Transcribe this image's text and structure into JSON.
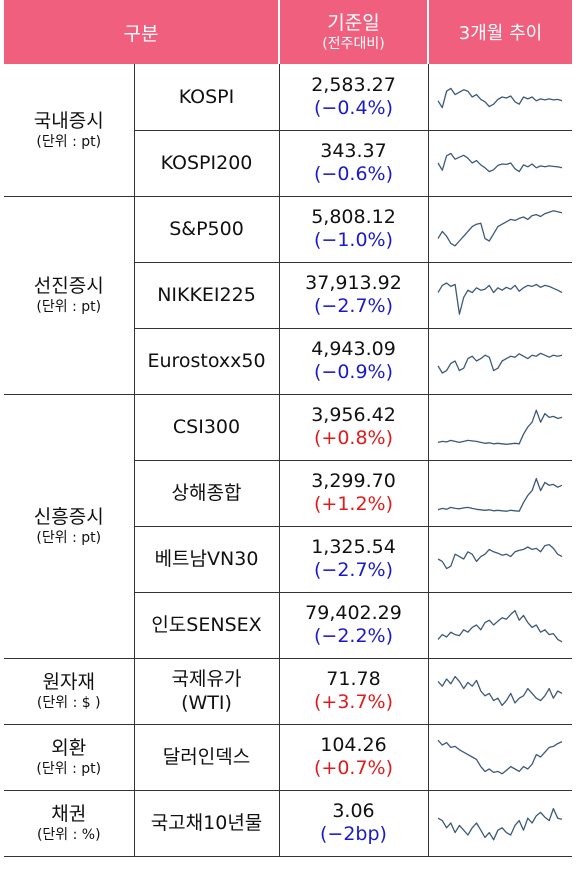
{
  "header": {
    "category": "구분",
    "base_date": "기준일",
    "base_date_sub": "(전주대비)",
    "trend": "3개월 추이"
  },
  "groups": [
    {
      "name": "국내증시",
      "unit": "(단위 : pt)"
    },
    {
      "name": "선진증시",
      "unit": "(단위 : pt)"
    },
    {
      "name": "신흥증시",
      "unit": "(단위 : pt)"
    },
    {
      "name": "원자재",
      "unit": "(단위 : $ )"
    },
    {
      "name": "외환",
      "unit": "(단위 : pt)"
    },
    {
      "name": "채권",
      "unit": "(단위 : %)"
    }
  ],
  "rows": [
    {
      "asset": "KOSPI",
      "value": "2,583.27",
      "change": "(−0.4%)",
      "direction": "down",
      "trend": [
        0.42,
        0.28,
        0.62,
        0.68,
        0.55,
        0.6,
        0.65,
        0.62,
        0.5,
        0.55,
        0.45,
        0.4,
        0.3,
        0.35,
        0.45,
        0.5,
        0.48,
        0.52,
        0.4,
        0.35,
        0.5,
        0.46,
        0.5,
        0.42,
        0.46,
        0.44,
        0.46,
        0.44,
        0.45,
        0.42
      ]
    },
    {
      "asset": "KOSPI200",
      "value": "343.37",
      "change": "(−0.6%)",
      "direction": "down",
      "trend": [
        0.5,
        0.35,
        0.65,
        0.7,
        0.58,
        0.62,
        0.66,
        0.6,
        0.5,
        0.55,
        0.46,
        0.4,
        0.32,
        0.36,
        0.45,
        0.48,
        0.47,
        0.5,
        0.38,
        0.32,
        0.46,
        0.42,
        0.48,
        0.4,
        0.44,
        0.42,
        0.44,
        0.43,
        0.42,
        0.4
      ]
    },
    {
      "asset": "S&P500",
      "value": "5,808.12",
      "change": "(−1.0%)",
      "direction": "down",
      "trend": [
        0.3,
        0.45,
        0.35,
        0.2,
        0.15,
        0.25,
        0.35,
        0.45,
        0.55,
        0.6,
        0.62,
        0.3,
        0.25,
        0.4,
        0.55,
        0.6,
        0.65,
        0.7,
        0.68,
        0.72,
        0.75,
        0.7,
        0.78,
        0.8,
        0.76,
        0.82,
        0.85,
        0.88,
        0.86,
        0.84
      ]
    },
    {
      "asset": "NIKKEI225",
      "value": "37,913.92",
      "change": "(−2.7%)",
      "direction": "down",
      "trend": [
        0.55,
        0.7,
        0.75,
        0.68,
        0.72,
        0.1,
        0.45,
        0.6,
        0.55,
        0.65,
        0.6,
        0.62,
        0.7,
        0.55,
        0.65,
        0.6,
        0.66,
        0.62,
        0.7,
        0.58,
        0.65,
        0.7,
        0.68,
        0.72,
        0.66,
        0.7,
        0.68,
        0.64,
        0.6,
        0.55
      ]
    },
    {
      "asset": "Eurostoxx50",
      "value": "4,943.09",
      "change": "(−0.9%)",
      "direction": "down",
      "trend": [
        0.4,
        0.25,
        0.3,
        0.45,
        0.5,
        0.3,
        0.35,
        0.55,
        0.6,
        0.5,
        0.55,
        0.62,
        0.58,
        0.3,
        0.35,
        0.5,
        0.55,
        0.6,
        0.58,
        0.65,
        0.6,
        0.55,
        0.62,
        0.6,
        0.66,
        0.62,
        0.58,
        0.62,
        0.6,
        0.62
      ]
    },
    {
      "asset": "CSI300",
      "value": "3,956.42",
      "change": "(+0.8%)",
      "direction": "up",
      "trend": [
        0.18,
        0.2,
        0.19,
        0.22,
        0.2,
        0.18,
        0.2,
        0.22,
        0.21,
        0.2,
        0.18,
        0.16,
        0.17,
        0.15,
        0.16,
        0.15,
        0.14,
        0.15,
        0.16,
        0.15,
        0.35,
        0.5,
        0.6,
        0.85,
        0.6,
        0.78,
        0.7,
        0.72,
        0.68,
        0.7
      ]
    },
    {
      "asset": "상해종합",
      "value": "3,299.70",
      "change": "(+1.2%)",
      "direction": "up",
      "trend": [
        0.15,
        0.18,
        0.16,
        0.2,
        0.18,
        0.17,
        0.19,
        0.2,
        0.18,
        0.16,
        0.15,
        0.14,
        0.15,
        0.13,
        0.14,
        0.13,
        0.12,
        0.14,
        0.13,
        0.12,
        0.3,
        0.45,
        0.55,
        0.8,
        0.55,
        0.72,
        0.66,
        0.68,
        0.62,
        0.66
      ]
    },
    {
      "asset": "베트남VN30",
      "value": "1,325.54",
      "change": "(−2.7%)",
      "direction": "down",
      "trend": [
        0.5,
        0.45,
        0.3,
        0.35,
        0.6,
        0.55,
        0.5,
        0.65,
        0.6,
        0.45,
        0.55,
        0.6,
        0.7,
        0.65,
        0.62,
        0.58,
        0.6,
        0.55,
        0.65,
        0.68,
        0.7,
        0.75,
        0.7,
        0.72,
        0.65,
        0.78,
        0.8,
        0.72,
        0.6,
        0.55
      ]
    },
    {
      "asset": "인도SENSEX",
      "value": "79,402.29",
      "change": "(−2.2%)",
      "direction": "down",
      "trend": [
        0.2,
        0.3,
        0.25,
        0.35,
        0.3,
        0.28,
        0.4,
        0.35,
        0.45,
        0.5,
        0.4,
        0.55,
        0.6,
        0.5,
        0.58,
        0.65,
        0.62,
        0.72,
        0.8,
        0.6,
        0.7,
        0.55,
        0.45,
        0.5,
        0.35,
        0.4,
        0.3,
        0.32,
        0.2,
        0.15
      ]
    },
    {
      "asset": "국제유가\n(WTI)",
      "value": "71.78",
      "change": "(+3.7%)",
      "direction": "up",
      "trend": [
        0.7,
        0.6,
        0.75,
        0.65,
        0.8,
        0.7,
        0.55,
        0.68,
        0.6,
        0.72,
        0.5,
        0.4,
        0.45,
        0.3,
        0.35,
        0.2,
        0.3,
        0.45,
        0.25,
        0.35,
        0.4,
        0.55,
        0.45,
        0.35,
        0.3,
        0.4,
        0.55,
        0.35,
        0.5,
        0.45
      ]
    },
    {
      "asset": "달러인덱스",
      "value": "104.26",
      "change": "(+0.7%)",
      "direction": "up",
      "trend": [
        0.85,
        0.75,
        0.8,
        0.7,
        0.72,
        0.65,
        0.6,
        0.55,
        0.5,
        0.45,
        0.3,
        0.2,
        0.25,
        0.18,
        0.2,
        0.15,
        0.22,
        0.3,
        0.25,
        0.2,
        0.3,
        0.25,
        0.35,
        0.55,
        0.5,
        0.6,
        0.7,
        0.72,
        0.78,
        0.82
      ]
    },
    {
      "asset": "국고채10년물",
      "value": "3.06",
      "change": "(−2bp)",
      "direction": "down",
      "trend": [
        0.6,
        0.55,
        0.4,
        0.5,
        0.3,
        0.45,
        0.35,
        0.25,
        0.4,
        0.5,
        0.35,
        0.2,
        0.3,
        0.15,
        0.35,
        0.4,
        0.3,
        0.25,
        0.45,
        0.55,
        0.35,
        0.6,
        0.5,
        0.65,
        0.72,
        0.62,
        0.55,
        0.8,
        0.6,
        0.58
      ]
    }
  ]
}
